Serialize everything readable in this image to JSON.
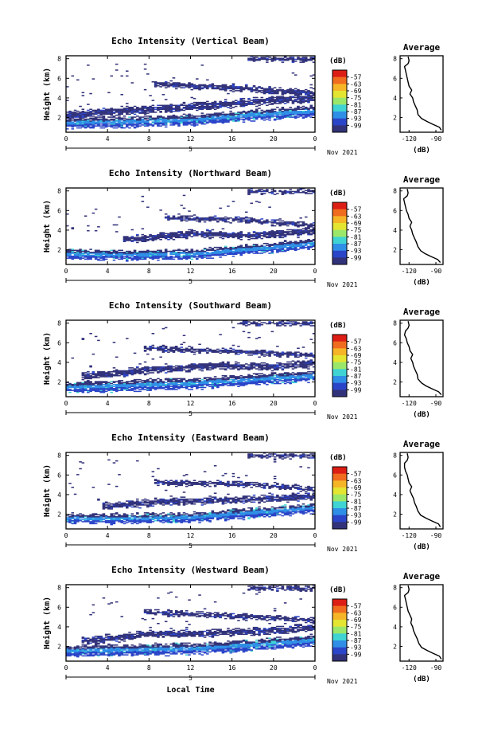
{
  "figure": {
    "x_axis_label": "Local Time",
    "date_label": "Nov 2021",
    "day_label": "5",
    "average_title": "Average",
    "colorbar_unit": "(dB)",
    "average_xlabel": "(dB)"
  },
  "colorbar": {
    "levels": [
      "-57",
      "-63",
      "-69",
      "-75",
      "-81",
      "-87",
      "-93",
      "-99"
    ],
    "colors": [
      "#dc1e14",
      "#f06c1e",
      "#f5b526",
      "#e3e531",
      "#9be76a",
      "#3fd3d3",
      "#2f8fe6",
      "#2b45c8",
      "#32327a"
    ]
  },
  "chart_data": [
    {
      "type": "heatmap",
      "title": "Echo Intensity (Vertical Beam)",
      "ylabel": "Height (km)",
      "xlabel": "Local Time",
      "x_ticks": [
        "0",
        "4",
        "8",
        "12",
        "16",
        "20",
        "0"
      ],
      "y_ticks": [
        "2",
        "4",
        "6",
        "8"
      ],
      "xlim": [
        0,
        24
      ],
      "ylim": [
        0.5,
        8.3
      ],
      "z_range_db": [
        -99,
        -57
      ],
      "layers": [
        {
          "desc": "surface layer",
          "points": [
            [
              0,
              1.4
            ],
            [
              6,
              1.5
            ],
            [
              12,
              1.7
            ],
            [
              18,
              2.2
            ],
            [
              24,
              2.6
            ]
          ],
          "thickness_km": 1.0,
          "intensity": "strong"
        },
        {
          "desc": "mid cloud",
          "points": [
            [
              0,
              2.2
            ],
            [
              8,
              2.8
            ],
            [
              14,
              3.2
            ],
            [
              18,
              3.6
            ],
            [
              24,
              3.9
            ]
          ],
          "thickness_km": 0.7,
          "intensity": "weak"
        },
        {
          "desc": "upper cloud",
          "points": [
            [
              9,
              5.3
            ],
            [
              16,
              5.0
            ],
            [
              24,
              4.4
            ]
          ],
          "thickness_km": 0.5,
          "intensity": "weak"
        },
        {
          "desc": "top cloud",
          "points": [
            [
              18,
              7.9
            ],
            [
              24,
              7.9
            ]
          ],
          "thickness_km": 0.4,
          "intensity": "weak"
        }
      ]
    },
    {
      "type": "heatmap",
      "title": "Echo Intensity (Northward Beam)",
      "ylabel": "Height (km)",
      "xlabel": "Local Time",
      "x_ticks": [
        "0",
        "4",
        "8",
        "12",
        "16",
        "20",
        "0"
      ],
      "y_ticks": [
        "2",
        "4",
        "6",
        "8"
      ],
      "xlim": [
        0,
        24
      ],
      "ylim": [
        0.5,
        8.3
      ],
      "z_range_db": [
        -99,
        -57
      ],
      "layers": [
        {
          "desc": "surface layer",
          "points": [
            [
              0,
              1.5
            ],
            [
              6,
              1.4
            ],
            [
              12,
              1.5
            ],
            [
              18,
              2.0
            ],
            [
              24,
              2.6
            ]
          ],
          "thickness_km": 0.9,
          "intensity": "strong"
        },
        {
          "desc": "mid cloud",
          "points": [
            [
              6,
              3.0
            ],
            [
              12,
              3.6
            ],
            [
              18,
              3.4
            ],
            [
              24,
              3.9
            ]
          ],
          "thickness_km": 0.6,
          "intensity": "weak"
        },
        {
          "desc": "upper cloud",
          "points": [
            [
              10,
              5.2
            ],
            [
              17,
              5.0
            ],
            [
              24,
              4.4
            ]
          ],
          "thickness_km": 0.4,
          "intensity": "weak"
        },
        {
          "desc": "top cloud",
          "points": [
            [
              18,
              7.9
            ],
            [
              24,
              7.9
            ]
          ],
          "thickness_km": 0.3,
          "intensity": "weak"
        }
      ]
    },
    {
      "type": "heatmap",
      "title": "Echo Intensity (Southward Beam)",
      "ylabel": "Height (km)",
      "xlabel": "Local Time",
      "x_ticks": [
        "0",
        "4",
        "8",
        "12",
        "16",
        "20",
        "0"
      ],
      "y_ticks": [
        "2",
        "4",
        "6",
        "8"
      ],
      "xlim": [
        0,
        24
      ],
      "ylim": [
        0.5,
        8.3
      ],
      "z_range_db": [
        -99,
        -57
      ],
      "layers": [
        {
          "desc": "surface layer",
          "points": [
            [
              0,
              1.4
            ],
            [
              6,
              1.6
            ],
            [
              12,
              1.8
            ],
            [
              18,
              2.2
            ],
            [
              24,
              2.6
            ]
          ],
          "thickness_km": 1.0,
          "intensity": "strong"
        },
        {
          "desc": "mid cloud",
          "points": [
            [
              2,
              2.6
            ],
            [
              8,
              3.2
            ],
            [
              14,
              3.6
            ],
            [
              20,
              3.5
            ],
            [
              24,
              3.9
            ]
          ],
          "thickness_km": 0.6,
          "intensity": "weak"
        },
        {
          "desc": "upper cloud",
          "points": [
            [
              8,
              5.4
            ],
            [
              16,
              5.1
            ],
            [
              24,
              4.6
            ]
          ],
          "thickness_km": 0.4,
          "intensity": "weak"
        },
        {
          "desc": "top cloud",
          "points": [
            [
              17,
              7.9
            ],
            [
              24,
              7.9
            ]
          ],
          "thickness_km": 0.3,
          "intensity": "weak"
        }
      ]
    },
    {
      "type": "heatmap",
      "title": "Echo Intensity (Eastward Beam)",
      "ylabel": "Height (km)",
      "xlabel": "Local Time",
      "x_ticks": [
        "0",
        "4",
        "8",
        "12",
        "16",
        "20",
        "0"
      ],
      "y_ticks": [
        "2",
        "4",
        "6",
        "8"
      ],
      "xlim": [
        0,
        24
      ],
      "ylim": [
        0.5,
        8.3
      ],
      "z_range_db": [
        -99,
        -57
      ],
      "layers": [
        {
          "desc": "surface layer",
          "points": [
            [
              0,
              1.5
            ],
            [
              6,
              1.5
            ],
            [
              12,
              1.6
            ],
            [
              18,
              2.1
            ],
            [
              24,
              2.6
            ]
          ],
          "thickness_km": 0.9,
          "intensity": "strong"
        },
        {
          "desc": "mid cloud",
          "points": [
            [
              4,
              2.8
            ],
            [
              10,
              3.3
            ],
            [
              16,
              3.4
            ],
            [
              24,
              3.8
            ]
          ],
          "thickness_km": 0.6,
          "intensity": "weak"
        },
        {
          "desc": "upper cloud",
          "points": [
            [
              9,
              5.2
            ],
            [
              17,
              5.0
            ],
            [
              24,
              4.5
            ]
          ],
          "thickness_km": 0.4,
          "intensity": "weak"
        },
        {
          "desc": "top cloud",
          "points": [
            [
              18,
              7.9
            ],
            [
              24,
              7.9
            ]
          ],
          "thickness_km": 0.3,
          "intensity": "weak"
        }
      ]
    },
    {
      "type": "heatmap",
      "title": "Echo Intensity (Westward Beam)",
      "ylabel": "Height (km)",
      "xlabel": "Local Time",
      "x_ticks": [
        "0",
        "4",
        "8",
        "12",
        "16",
        "20",
        "0"
      ],
      "y_ticks": [
        "2",
        "4",
        "6",
        "8"
      ],
      "xlim": [
        0,
        24
      ],
      "ylim": [
        0.5,
        8.3
      ],
      "z_range_db": [
        -99,
        -57
      ],
      "layers": [
        {
          "desc": "surface layer",
          "points": [
            [
              0,
              1.5
            ],
            [
              6,
              1.6
            ],
            [
              12,
              1.7
            ],
            [
              18,
              2.1
            ],
            [
              24,
              2.6
            ]
          ],
          "thickness_km": 1.0,
          "intensity": "strong"
        },
        {
          "desc": "mid cloud",
          "points": [
            [
              2,
              2.5
            ],
            [
              8,
              3.2
            ],
            [
              14,
              3.3
            ],
            [
              20,
              3.6
            ],
            [
              24,
              3.9
            ]
          ],
          "thickness_km": 0.6,
          "intensity": "weak"
        },
        {
          "desc": "upper cloud",
          "points": [
            [
              8,
              5.4
            ],
            [
              16,
              5.1
            ],
            [
              24,
              4.6
            ]
          ],
          "thickness_km": 0.4,
          "intensity": "weak"
        },
        {
          "desc": "top cloud",
          "points": [
            [
              18,
              7.9
            ],
            [
              24,
              7.9
            ]
          ],
          "thickness_km": 0.4,
          "intensity": "weak"
        }
      ]
    },
    {
      "type": "line",
      "title": "Average",
      "xlabel": "(dB)",
      "x_ticks": [
        "-120",
        "-90"
      ],
      "y_ticks": [
        "2",
        "4",
        "6",
        "8"
      ],
      "xlim": [
        -130,
        -82
      ],
      "ylim": [
        0.5,
        8.3
      ],
      "series": [
        {
          "x": [
            -84,
            -86,
            -93,
            -100,
            -106,
            -110,
            -111,
            -113,
            -115,
            -116,
            -119,
            -117,
            -120,
            -121,
            -122,
            -123,
            -124,
            -125,
            -121,
            -120,
            -121
          ],
          "y": [
            0.7,
            1.0,
            1.3,
            1.6,
            1.9,
            2.3,
            2.8,
            3.2,
            3.6,
            4.0,
            4.4,
            4.8,
            5.2,
            5.6,
            6.0,
            6.4,
            6.8,
            7.2,
            7.5,
            7.8,
            8.2
          ]
        }
      ]
    },
    {
      "type": "line",
      "title": "Average",
      "xlabel": "(dB)",
      "x_ticks": [
        "-120",
        "-90"
      ],
      "y_ticks": [
        "2",
        "4",
        "6",
        "8"
      ],
      "xlim": [
        -130,
        -82
      ],
      "ylim": [
        0.5,
        8.3
      ],
      "series": [
        {
          "x": [
            -85,
            -88,
            -95,
            -102,
            -107,
            -110,
            -112,
            -114,
            -116,
            -117,
            -119,
            -117,
            -120,
            -121,
            -123,
            -124,
            -125,
            -126,
            -122,
            -121,
            -122
          ],
          "y": [
            0.7,
            1.0,
            1.3,
            1.6,
            1.9,
            2.3,
            2.8,
            3.2,
            3.6,
            4.0,
            4.4,
            4.8,
            5.2,
            5.6,
            6.0,
            6.4,
            6.8,
            7.2,
            7.5,
            7.8,
            8.2
          ]
        }
      ]
    },
    {
      "type": "line",
      "title": "Average",
      "xlabel": "(dB)",
      "x_ticks": [
        "-120",
        "-90"
      ],
      "y_ticks": [
        "2",
        "4",
        "6",
        "8"
      ],
      "xlim": [
        -130,
        -82
      ],
      "ylim": [
        0.5,
        8.3
      ],
      "series": [
        {
          "x": [
            -84,
            -87,
            -94,
            -101,
            -106,
            -110,
            -111,
            -113,
            -115,
            -116,
            -118,
            -116,
            -119,
            -120,
            -122,
            -123,
            -125,
            -124,
            -121,
            -120,
            -121
          ],
          "y": [
            0.7,
            1.0,
            1.3,
            1.6,
            1.9,
            2.3,
            2.8,
            3.2,
            3.6,
            4.0,
            4.4,
            4.8,
            5.2,
            5.6,
            6.0,
            6.4,
            6.8,
            7.2,
            7.5,
            7.8,
            8.2
          ]
        }
      ]
    },
    {
      "type": "line",
      "title": "Average",
      "xlabel": "(dB)",
      "x_ticks": [
        "-120",
        "-90"
      ],
      "y_ticks": [
        "2",
        "4",
        "6",
        "8"
      ],
      "xlim": [
        -130,
        -82
      ],
      "ylim": [
        0.5,
        8.3
      ],
      "series": [
        {
          "x": [
            -85,
            -87,
            -94,
            -101,
            -107,
            -110,
            -112,
            -114,
            -115,
            -117,
            -119,
            -117,
            -120,
            -121,
            -122,
            -124,
            -125,
            -125,
            -122,
            -121,
            -122
          ],
          "y": [
            0.7,
            1.0,
            1.3,
            1.6,
            1.9,
            2.3,
            2.8,
            3.2,
            3.6,
            4.0,
            4.4,
            4.8,
            5.2,
            5.6,
            6.0,
            6.4,
            6.8,
            7.2,
            7.5,
            7.8,
            8.2
          ]
        }
      ]
    },
    {
      "type": "line",
      "title": "Average",
      "xlabel": "(dB)",
      "x_ticks": [
        "-120",
        "-90"
      ],
      "y_ticks": [
        "2",
        "4",
        "6",
        "8"
      ],
      "xlim": [
        -130,
        -82
      ],
      "ylim": [
        0.5,
        8.3
      ],
      "series": [
        {
          "x": [
            -84,
            -86,
            -93,
            -100,
            -106,
            -109,
            -111,
            -113,
            -115,
            -116,
            -118,
            -117,
            -119,
            -121,
            -122,
            -123,
            -124,
            -125,
            -121,
            -120,
            -121
          ],
          "y": [
            0.7,
            1.0,
            1.3,
            1.6,
            1.9,
            2.3,
            2.8,
            3.2,
            3.6,
            4.0,
            4.4,
            4.8,
            5.2,
            5.6,
            6.0,
            6.4,
            6.8,
            7.2,
            7.5,
            7.8,
            8.2
          ]
        }
      ]
    }
  ]
}
